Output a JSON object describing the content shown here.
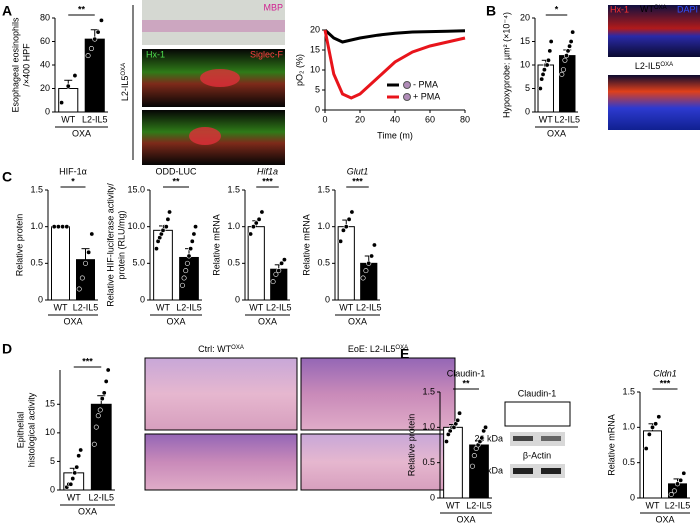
{
  "panels": [
    "A",
    "B",
    "C",
    "D",
    "E"
  ],
  "image_labels": {
    "a_mbp": "MBP",
    "a_side": {
      "text": "L2-IL5",
      "sup": "OXA"
    },
    "a_hx": "Hx-1",
    "a_siglec": "Siglec-F",
    "b_hx": "Hx-1",
    "b_wt": {
      "text": "WT",
      "sup": "OXA"
    },
    "b_dapi": "DAPI",
    "b_l2": {
      "text": "L2-IL5",
      "sup": "OXA"
    },
    "d_ctrl": {
      "text": "Ctrl: WT",
      "sup": "OXA"
    },
    "d_eoe": {
      "text": "EoE: L2-IL5",
      "sup": "OXA"
    }
  },
  "blot": {
    "title": "Claudin-1",
    "marker1": "20 kDa",
    "actin": "β-Actin",
    "marker2": "37 kDa"
  },
  "chart_data": [
    {
      "type": "bar",
      "ylabel": [
        "Esophageal eosinophils",
        "/×400 HPF"
      ],
      "categories": [
        "WT",
        "L2-IL5"
      ],
      "xlabel": "OXA",
      "values": [
        20,
        62
      ],
      "errors": [
        7,
        8
      ],
      "points": [
        [
          8,
          22,
          31
        ],
        [
          48,
          54,
          62,
          68,
          78
        ]
      ],
      "significance": "**",
      "colors": [
        "#ffffff",
        "#000000"
      ],
      "ylim": [
        0,
        80
      ],
      "yticks": [
        0,
        20,
        40,
        60,
        80
      ]
    },
    {
      "type": "line",
      "ylabel": "pO₂ (%)",
      "xlabel": "Time (m)",
      "x": [
        0,
        5,
        10,
        15,
        20,
        30,
        40,
        50,
        60,
        70,
        80
      ],
      "series": [
        {
          "name": "- PMA",
          "color": "#000000",
          "values": [
            20,
            18,
            17,
            17.5,
            18,
            18.7,
            19.2,
            19.5,
            19.6,
            19.7,
            19.8
          ]
        },
        {
          "name": "+ PMA",
          "color": "#e8141b",
          "values": [
            20,
            9,
            4,
            3,
            4,
            8,
            12,
            14.5,
            16,
            17,
            18
          ]
        }
      ],
      "xlim": [
        0,
        80
      ],
      "xticks": [
        0,
        20,
        40,
        60,
        80
      ],
      "ylim": [
        0,
        20
      ],
      "yticks": [
        0,
        5,
        10,
        15,
        20
      ]
    },
    {
      "type": "bar",
      "ylabel": [
        "Hypoxyprobe: µm² (×10⁻⁴)"
      ],
      "categories": [
        "WT",
        "L2-IL5"
      ],
      "xlabel": "OXA",
      "values": [
        10,
        12
      ],
      "errors": [
        1,
        1.2
      ],
      "points": [
        [
          5,
          7,
          8,
          9,
          10,
          10,
          11,
          13,
          15
        ],
        [
          8,
          9,
          11,
          12,
          13,
          14,
          15,
          17
        ]
      ],
      "significance": "*",
      "colors": [
        "#ffffff",
        "#000000"
      ],
      "ylim": [
        0,
        20
      ],
      "yticks": [
        0,
        5,
        10,
        15,
        20
      ]
    },
    {
      "type": "bar",
      "title": "HIF-1α",
      "ylabel": [
        "Relative protein"
      ],
      "categories": [
        "WT",
        "L2-IL5"
      ],
      "xlabel": "OXA",
      "values": [
        1.0,
        0.55
      ],
      "errors": [
        0.01,
        0.15
      ],
      "points": [
        [
          1,
          1,
          1,
          1
        ],
        [
          0.15,
          0.3,
          0.5,
          0.65,
          0.9
        ]
      ],
      "significance": "*",
      "colors": [
        "#ffffff",
        "#000000"
      ],
      "ylim": [
        0,
        1.5
      ],
      "yticks": [
        0,
        0.5,
        {
          "value": 1,
          "label": "1.0"
        },
        1.5
      ]
    },
    {
      "type": "bar",
      "title": "ODD-LUC",
      "ylabel": [
        "Relative HIF-luciferase activity/",
        "protein (RLU/mg)"
      ],
      "categories": [
        "WT",
        "L2-IL5"
      ],
      "xlabel": "OXA",
      "values": [
        9.5,
        5.8
      ],
      "errors": [
        0.6,
        1.2
      ],
      "points": [
        [
          7,
          8,
          8.5,
          9,
          9.5,
          10,
          10,
          11,
          12
        ],
        [
          2,
          3,
          4,
          5,
          6,
          7,
          8,
          9,
          10
        ]
      ],
      "significance": "**",
      "colors": [
        "#ffffff",
        "#000000"
      ],
      "ylim": [
        0,
        15
      ],
      "yticks": [
        0,
        {
          "value": 5,
          "label": "5.0"
        },
        {
          "value": 10,
          "label": "10.0"
        },
        {
          "value": 15,
          "label": "15.0"
        }
      ]
    },
    {
      "type": "bar",
      "title": "Hif1a",
      "title_italic": true,
      "ylabel": [
        "Relative mRNA"
      ],
      "categories": [
        "WT",
        "L2-IL5"
      ],
      "xlabel": "OXA",
      "values": [
        1.0,
        0.42
      ],
      "errors": [
        0.08,
        0.06
      ],
      "points": [
        [
          0.9,
          1.0,
          1.05,
          1.1,
          1.2
        ],
        [
          0.25,
          0.35,
          0.4,
          0.5,
          0.55
        ]
      ],
      "significance": "***",
      "colors": [
        "#ffffff",
        "#000000"
      ],
      "ylim": [
        0,
        1.5
      ],
      "yticks": [
        0,
        0.5,
        {
          "value": 1,
          "label": "1.0"
        },
        1.5
      ]
    },
    {
      "type": "bar",
      "title": "Glut1",
      "title_italic": true,
      "ylabel": [
        "Relative mRNA"
      ],
      "categories": [
        "WT",
        "L2-IL5"
      ],
      "xlabel": "OXA",
      "values": [
        1.0,
        0.5
      ],
      "errors": [
        0.09,
        0.1
      ],
      "points": [
        [
          0.8,
          0.95,
          1.0,
          1.1,
          1.2
        ],
        [
          0.3,
          0.4,
          0.5,
          0.6,
          0.75
        ]
      ],
      "significance": "***",
      "colors": [
        "#ffffff",
        "#000000"
      ],
      "ylim": [
        0,
        1.5
      ],
      "yticks": [
        0,
        0.5,
        {
          "value": 1,
          "label": "1.0"
        },
        1.5
      ]
    },
    {
      "type": "bar",
      "ylabel": [
        "Epithelial",
        "histological activity"
      ],
      "categories": [
        "WT",
        "L2-IL5"
      ],
      "xlabel": "OXA",
      "values": [
        3,
        15
      ],
      "errors": [
        0.8,
        1.5
      ],
      "points": [
        [
          0.5,
          1,
          1,
          2,
          3,
          4,
          6,
          7
        ],
        [
          8,
          11,
          13,
          14,
          16,
          17,
          19,
          21
        ]
      ],
      "significance": "***",
      "colors": [
        "#ffffff",
        "#000000"
      ],
      "ylim": [
        0,
        21
      ],
      "yticks": [
        0,
        5,
        10,
        15
      ]
    },
    {
      "type": "bar",
      "title": "Claudin-1",
      "ylabel": [
        "Relative protein"
      ],
      "categories": [
        "WT",
        "L2-IL5"
      ],
      "xlabel": "OXA",
      "values": [
        1.0,
        0.75
      ],
      "errors": [
        0.04,
        0.06
      ],
      "points": [
        [
          0.8,
          0.9,
          0.95,
          1.0,
          1.0,
          1.05,
          1.1,
          1.2
        ],
        [
          0.45,
          0.6,
          0.7,
          0.75,
          0.8,
          0.85,
          0.95,
          1.0
        ]
      ],
      "significance": "**",
      "colors": [
        "#ffffff",
        "#000000"
      ],
      "ylim": [
        0,
        1.5
      ],
      "yticks": [
        0,
        0.5,
        {
          "value": 1,
          "label": "1.0"
        },
        1.5
      ]
    },
    {
      "type": "bar",
      "title": "Cldn1",
      "title_italic": true,
      "ylabel": [
        "Relative mRNA"
      ],
      "categories": [
        "WT",
        "L2-IL5"
      ],
      "xlabel": "OXA",
      "values": [
        0.95,
        0.2
      ],
      "errors": [
        0.1,
        0.07
      ],
      "points": [
        [
          0.7,
          0.9,
          1.0,
          1.05,
          1.15
        ],
        [
          0.05,
          0.1,
          0.2,
          0.25,
          0.35
        ]
      ],
      "significance": "***",
      "colors": [
        "#ffffff",
        "#000000"
      ],
      "ylim": [
        0,
        1.5
      ],
      "yticks": [
        0,
        0.5,
        {
          "value": 1,
          "label": "1.0"
        },
        1.5
      ]
    }
  ]
}
